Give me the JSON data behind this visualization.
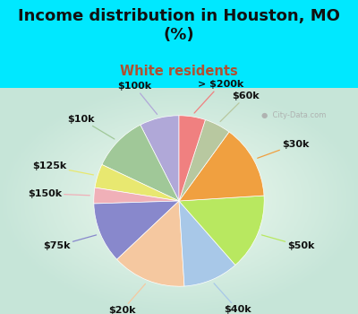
{
  "title": "Income distribution in Houston, MO\n(%)",
  "subtitle": "White residents",
  "title_color": "#111111",
  "subtitle_color": "#b05030",
  "bg_color": "#00e8ff",
  "chart_bg_gradient_center": "#f0faf5",
  "chart_bg_gradient_edge": "#c8ecd8",
  "watermark": "City-Data.com",
  "labels": [
    "$100k",
    "$10k",
    "$125k",
    "$150k",
    "$75k",
    "$20k",
    "$40k",
    "$50k",
    "$30k",
    "$60k",
    "> $200k"
  ],
  "values": [
    7.5,
    10.5,
    4.5,
    3.0,
    11.5,
    14.0,
    10.5,
    14.5,
    14.0,
    5.0,
    5.0
  ],
  "colors": [
    "#b0a8d8",
    "#a0c898",
    "#e8e870",
    "#f0b0b8",
    "#8888cc",
    "#f5c8a0",
    "#a8c8e8",
    "#b8e860",
    "#f0a040",
    "#b8c8a0",
    "#f08080"
  ],
  "startangle": 90,
  "label_fontsize": 8,
  "title_fontsize": 13,
  "subtitle_fontsize": 10.5
}
